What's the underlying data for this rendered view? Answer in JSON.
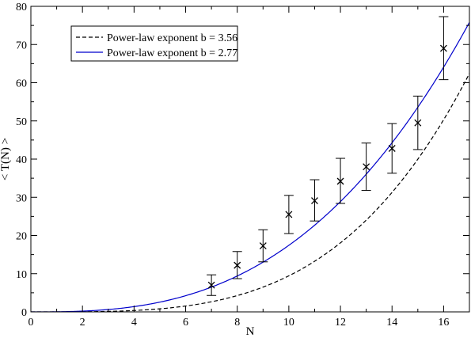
{
  "chart_data": {
    "type": "scatter",
    "xlabel": "N",
    "ylabel": "< T(N) >",
    "xlim": [
      0,
      17
    ],
    "ylim": [
      0,
      80
    ],
    "xticks": [
      0,
      2,
      4,
      6,
      8,
      10,
      12,
      14,
      16
    ],
    "yticks": [
      0,
      10,
      20,
      30,
      40,
      50,
      60,
      70,
      80
    ],
    "xtick_labels": [
      "0",
      "2",
      "4",
      "6",
      "8",
      "10",
      "12",
      "14",
      "16"
    ],
    "ytick_labels": [
      "0",
      "10",
      "20",
      "30",
      "40",
      "50",
      "60",
      "70",
      "80"
    ],
    "minor_x_step": 1,
    "minor_y_step": 5,
    "grid": false,
    "legend_position": "top-left",
    "points": [
      {
        "x": 7,
        "y": 7.0,
        "lo": 4.3,
        "hi": 9.7
      },
      {
        "x": 8,
        "y": 12.2,
        "lo": 8.7,
        "hi": 15.8
      },
      {
        "x": 9,
        "y": 17.3,
        "lo": 13.1,
        "hi": 21.5
      },
      {
        "x": 10,
        "y": 25.5,
        "lo": 20.5,
        "hi": 30.5
      },
      {
        "x": 11,
        "y": 29.1,
        "lo": 23.8,
        "hi": 34.6
      },
      {
        "x": 12,
        "y": 34.2,
        "lo": 28.4,
        "hi": 40.2
      },
      {
        "x": 13,
        "y": 38.0,
        "lo": 31.8,
        "hi": 44.2
      },
      {
        "x": 14,
        "y": 42.8,
        "lo": 36.3,
        "hi": 49.3
      },
      {
        "x": 15,
        "y": 49.5,
        "lo": 42.5,
        "hi": 56.5
      },
      {
        "x": 16,
        "y": 69.0,
        "lo": 60.8,
        "hi": 77.3
      }
    ],
    "fits": [
      {
        "name": "Power-law exponent b = 3.56",
        "exponent": 3.56,
        "coef": 0.0026,
        "color": "#000000",
        "dash": "5,3"
      },
      {
        "name": "Power-law exponent b = 2.77",
        "exponent": 2.77,
        "coef": 0.0296,
        "color": "#0000cc",
        "dash": ""
      }
    ]
  }
}
